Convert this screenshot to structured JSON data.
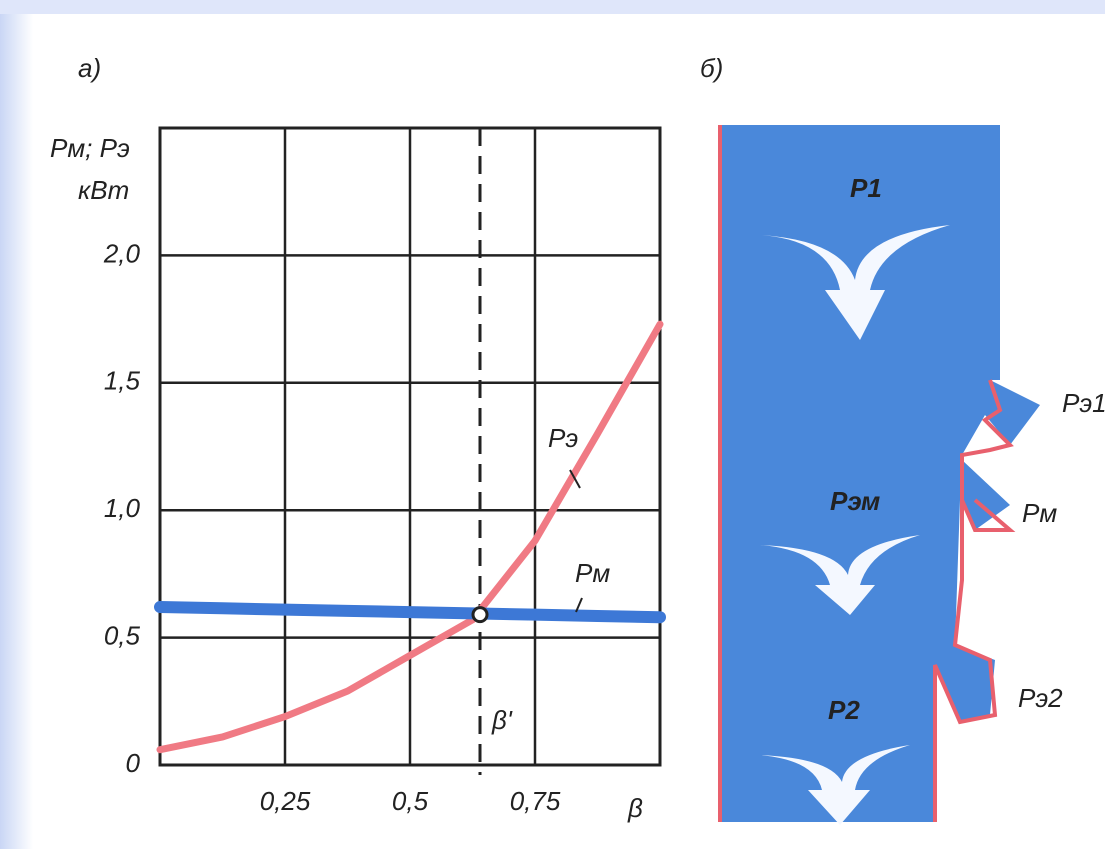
{
  "chart_data": {
    "type": "line",
    "title": "а)",
    "y_label": [
      "Pм; Pэ",
      "кВт"
    ],
    "x_label": "β",
    "x": [
      0,
      0.125,
      0.25,
      0.375,
      0.5,
      0.625,
      0.75,
      0.875,
      1
    ],
    "series": [
      {
        "name": "Pэ",
        "color": "#f07a84",
        "values": [
          0.06,
          0.11,
          0.19,
          0.29,
          0.43,
          0.57,
          0.88,
          1.3,
          1.73
        ]
      },
      {
        "name": "Pм",
        "color": "#3d78d6",
        "values": [
          0.62,
          0.615,
          0.61,
          0.605,
          0.6,
          0.595,
          0.59,
          0.585,
          0.58
        ]
      }
    ],
    "xlim": [
      0,
      1
    ],
    "ylim": [
      0,
      2.5
    ],
    "xticks": [
      {
        "value": 0.25,
        "label": "0,25"
      },
      {
        "value": 0.5,
        "label": "0,5"
      },
      {
        "value": 0.75,
        "label": "0,75"
      }
    ],
    "yticks": [
      0,
      {
        "value": 0.5,
        "label": "0,5"
      },
      {
        "value": 1,
        "label": "1,0"
      },
      {
        "value": 1.5,
        "label": "1,5"
      },
      {
        "value": 2,
        "label": "2,0"
      }
    ],
    "grid": true,
    "marker_line": {
      "label": "β'",
      "x": 0.64
    },
    "intersection": {
      "x": 0.64,
      "y": 0.59
    }
  },
  "diagram": {
    "title": "б)",
    "labels": [
      "P1",
      "Pэм",
      "P2",
      "Pэ1",
      "Pм",
      "Pэ2"
    ]
  }
}
